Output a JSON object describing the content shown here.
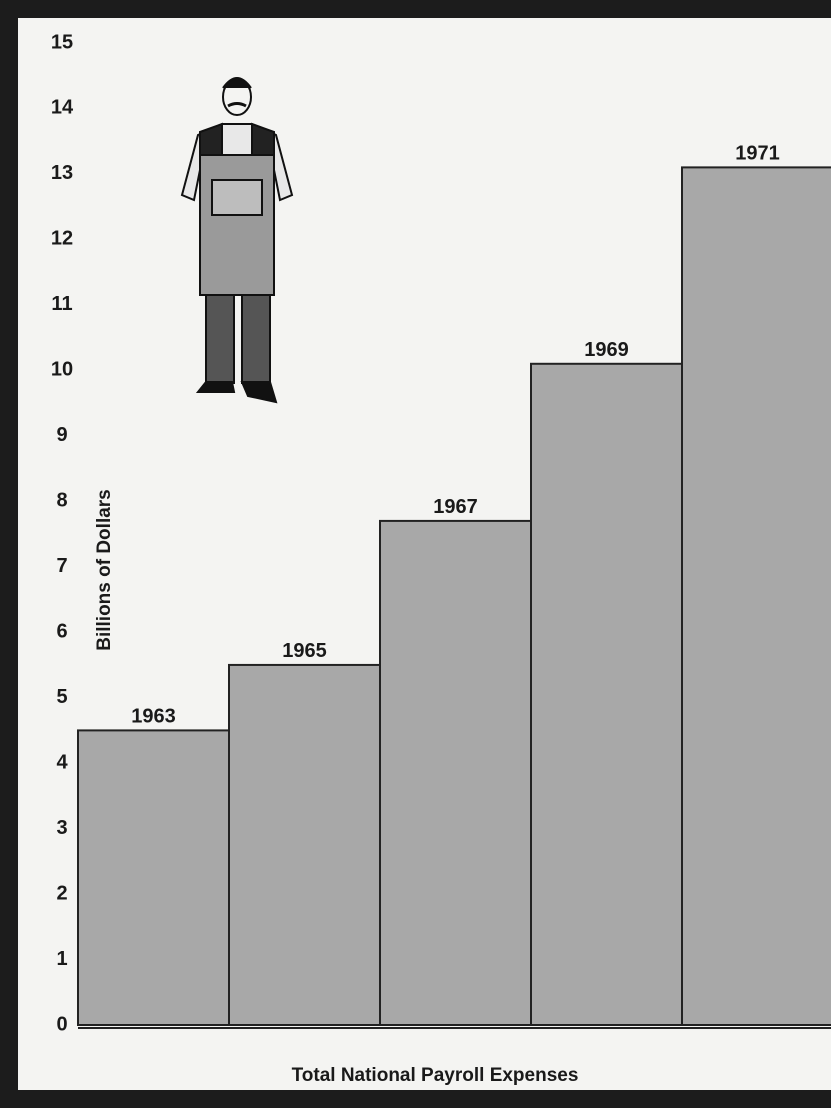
{
  "chart_data": {
    "type": "bar",
    "categories": [
      "1963",
      "1965",
      "1967",
      "1969",
      "1971"
    ],
    "values": [
      4.5,
      5.5,
      7.7,
      10.1,
      13.1
    ],
    "color": "#a8a8a8",
    "y_label": "Billions of Dollars",
    "x_label": "Total National Payroll Expenses",
    "ylim": [
      0,
      15
    ],
    "yticks": [
      0,
      1,
      2,
      3,
      4,
      5,
      6,
      7,
      8,
      9,
      10,
      11,
      12,
      13,
      14,
      15
    ],
    "grid": false
  }
}
